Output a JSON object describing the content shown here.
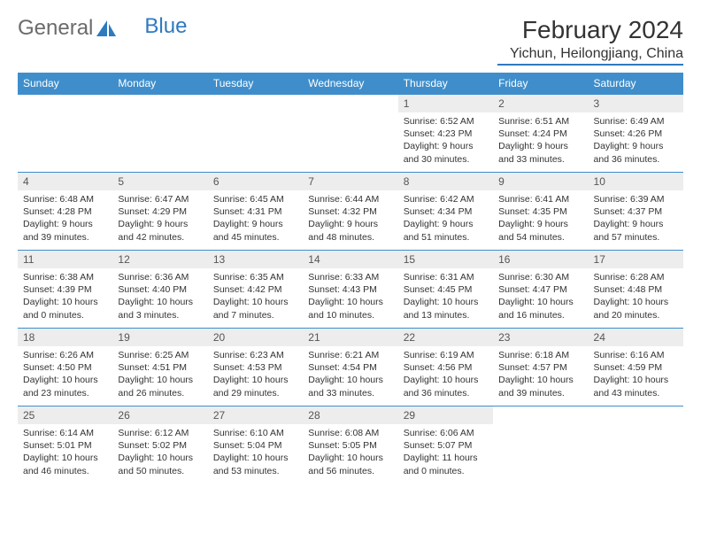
{
  "logo": {
    "text1": "General",
    "text2": "Blue"
  },
  "title": "February 2024",
  "location": "Yichun, Heilongjiang, China",
  "colors": {
    "header_bg": "#3f8ecb",
    "header_text": "#ffffff",
    "daynum_bg": "#ededed",
    "border": "#3f8ecb",
    "accent": "#2e7abf",
    "logo_gray": "#6b6b6b"
  },
  "day_headers": [
    "Sunday",
    "Monday",
    "Tuesday",
    "Wednesday",
    "Thursday",
    "Friday",
    "Saturday"
  ],
  "weeks": [
    [
      null,
      null,
      null,
      null,
      {
        "n": "1",
        "sunrise": "6:52 AM",
        "sunset": "4:23 PM",
        "daylight": "9 hours and 30 minutes."
      },
      {
        "n": "2",
        "sunrise": "6:51 AM",
        "sunset": "4:24 PM",
        "daylight": "9 hours and 33 minutes."
      },
      {
        "n": "3",
        "sunrise": "6:49 AM",
        "sunset": "4:26 PM",
        "daylight": "9 hours and 36 minutes."
      }
    ],
    [
      {
        "n": "4",
        "sunrise": "6:48 AM",
        "sunset": "4:28 PM",
        "daylight": "9 hours and 39 minutes."
      },
      {
        "n": "5",
        "sunrise": "6:47 AM",
        "sunset": "4:29 PM",
        "daylight": "9 hours and 42 minutes."
      },
      {
        "n": "6",
        "sunrise": "6:45 AM",
        "sunset": "4:31 PM",
        "daylight": "9 hours and 45 minutes."
      },
      {
        "n": "7",
        "sunrise": "6:44 AM",
        "sunset": "4:32 PM",
        "daylight": "9 hours and 48 minutes."
      },
      {
        "n": "8",
        "sunrise": "6:42 AM",
        "sunset": "4:34 PM",
        "daylight": "9 hours and 51 minutes."
      },
      {
        "n": "9",
        "sunrise": "6:41 AM",
        "sunset": "4:35 PM",
        "daylight": "9 hours and 54 minutes."
      },
      {
        "n": "10",
        "sunrise": "6:39 AM",
        "sunset": "4:37 PM",
        "daylight": "9 hours and 57 minutes."
      }
    ],
    [
      {
        "n": "11",
        "sunrise": "6:38 AM",
        "sunset": "4:39 PM",
        "daylight": "10 hours and 0 minutes."
      },
      {
        "n": "12",
        "sunrise": "6:36 AM",
        "sunset": "4:40 PM",
        "daylight": "10 hours and 3 minutes."
      },
      {
        "n": "13",
        "sunrise": "6:35 AM",
        "sunset": "4:42 PM",
        "daylight": "10 hours and 7 minutes."
      },
      {
        "n": "14",
        "sunrise": "6:33 AM",
        "sunset": "4:43 PM",
        "daylight": "10 hours and 10 minutes."
      },
      {
        "n": "15",
        "sunrise": "6:31 AM",
        "sunset": "4:45 PM",
        "daylight": "10 hours and 13 minutes."
      },
      {
        "n": "16",
        "sunrise": "6:30 AM",
        "sunset": "4:47 PM",
        "daylight": "10 hours and 16 minutes."
      },
      {
        "n": "17",
        "sunrise": "6:28 AM",
        "sunset": "4:48 PM",
        "daylight": "10 hours and 20 minutes."
      }
    ],
    [
      {
        "n": "18",
        "sunrise": "6:26 AM",
        "sunset": "4:50 PM",
        "daylight": "10 hours and 23 minutes."
      },
      {
        "n": "19",
        "sunrise": "6:25 AM",
        "sunset": "4:51 PM",
        "daylight": "10 hours and 26 minutes."
      },
      {
        "n": "20",
        "sunrise": "6:23 AM",
        "sunset": "4:53 PM",
        "daylight": "10 hours and 29 minutes."
      },
      {
        "n": "21",
        "sunrise": "6:21 AM",
        "sunset": "4:54 PM",
        "daylight": "10 hours and 33 minutes."
      },
      {
        "n": "22",
        "sunrise": "6:19 AM",
        "sunset": "4:56 PM",
        "daylight": "10 hours and 36 minutes."
      },
      {
        "n": "23",
        "sunrise": "6:18 AM",
        "sunset": "4:57 PM",
        "daylight": "10 hours and 39 minutes."
      },
      {
        "n": "24",
        "sunrise": "6:16 AM",
        "sunset": "4:59 PM",
        "daylight": "10 hours and 43 minutes."
      }
    ],
    [
      {
        "n": "25",
        "sunrise": "6:14 AM",
        "sunset": "5:01 PM",
        "daylight": "10 hours and 46 minutes."
      },
      {
        "n": "26",
        "sunrise": "6:12 AM",
        "sunset": "5:02 PM",
        "daylight": "10 hours and 50 minutes."
      },
      {
        "n": "27",
        "sunrise": "6:10 AM",
        "sunset": "5:04 PM",
        "daylight": "10 hours and 53 minutes."
      },
      {
        "n": "28",
        "sunrise": "6:08 AM",
        "sunset": "5:05 PM",
        "daylight": "10 hours and 56 minutes."
      },
      {
        "n": "29",
        "sunrise": "6:06 AM",
        "sunset": "5:07 PM",
        "daylight": "11 hours and 0 minutes."
      },
      null,
      null
    ]
  ],
  "labels": {
    "sunrise": "Sunrise:",
    "sunset": "Sunset:",
    "daylight": "Daylight:"
  }
}
